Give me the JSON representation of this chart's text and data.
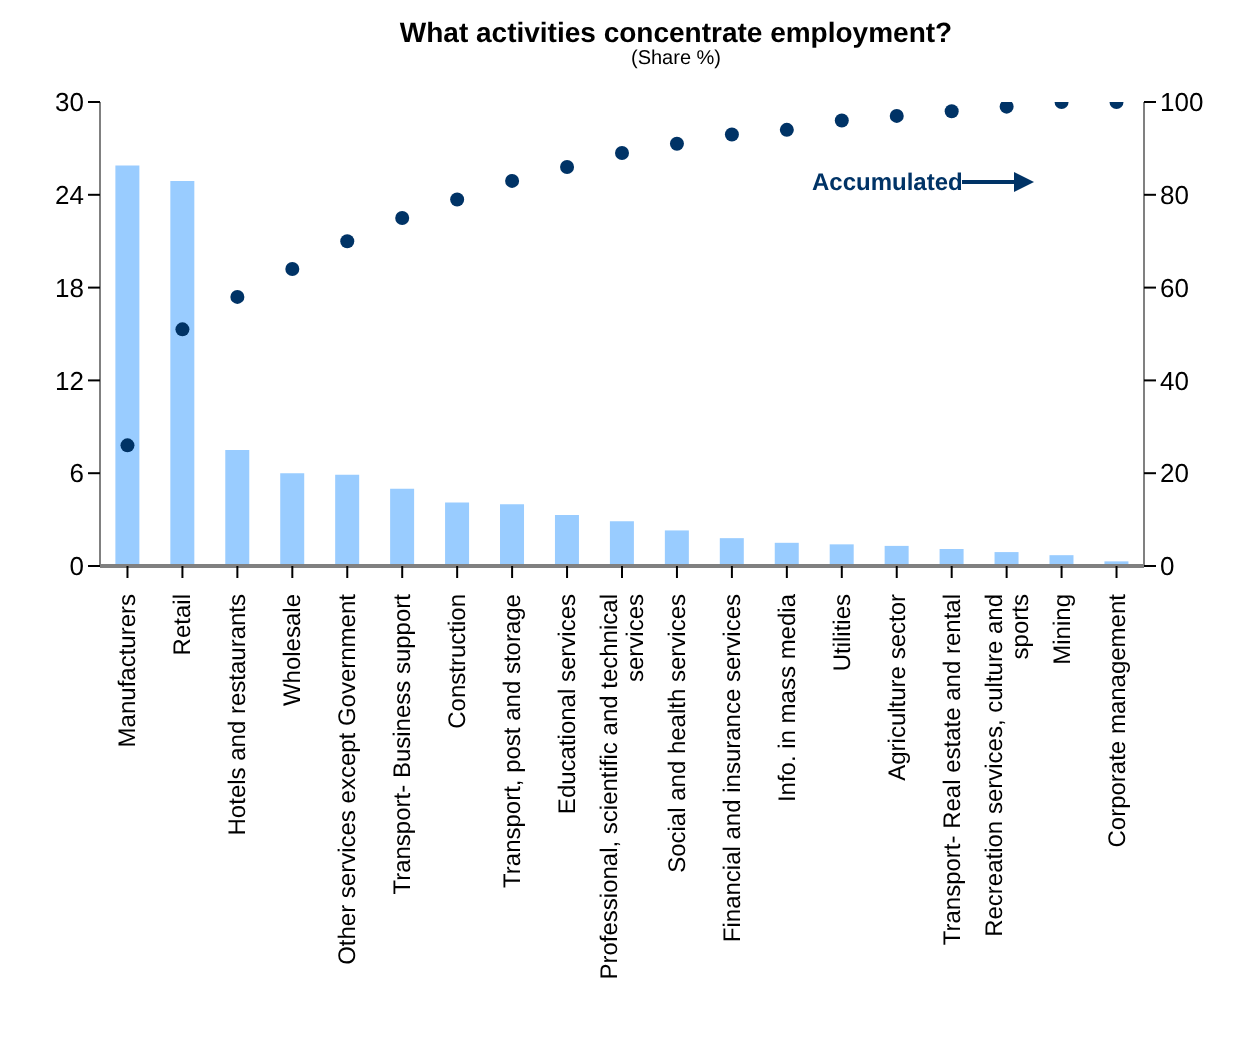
{
  "chart_data": {
    "type": "bar",
    "title": "What activities concentrate employment?",
    "subtitle": "(Share %)",
    "categories": [
      "Manufacturers",
      "Retail",
      "Hotels and restaurants",
      "Wholesale",
      "Other services except Government",
      "Transport- Business support",
      "Construction",
      "Transport, post and storage",
      "Educational services",
      "Professional, scientific and technical services",
      "Social and health services",
      "Financial and insurance services",
      "Info. in mass media",
      "Utilities",
      "Agriculture sector",
      "Transport- Real estate and rental",
      "Recreation services, culture and sports",
      "Mining",
      "Corporate management"
    ],
    "series": [
      {
        "color": "#99ccff",
        "values": [
          25.9,
          24.9,
          7.5,
          6.0,
          5.9,
          5.0,
          4.1,
          4.0,
          3.3,
          2.9,
          2.3,
          1.8,
          1.5,
          1.4,
          1.3,
          1.1,
          0.9,
          0.7,
          0.3
        ]
      },
      {
        "type": "scatter",
        "axis": "y2",
        "color": "#003366",
        "values": [
          26,
          51,
          58,
          64,
          70,
          75,
          79,
          83,
          86,
          89,
          91,
          93,
          94,
          96,
          97,
          98,
          99,
          100,
          100
        ]
      }
    ],
    "ylim": [
      0,
      30
    ],
    "yticks": [
      0,
      6,
      12,
      18,
      24,
      30
    ],
    "y2lim": [
      0,
      100
    ],
    "y2ticks": [
      0,
      20,
      40,
      60,
      80,
      100
    ],
    "marker": "circle",
    "annotations": [
      "Accumulated"
    ]
  }
}
